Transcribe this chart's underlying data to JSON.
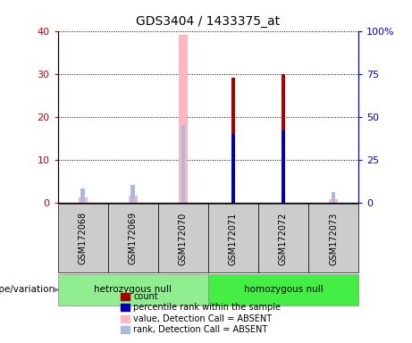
{
  "title": "GDS3404 / 1433375_at",
  "samples": [
    "GSM172068",
    "GSM172069",
    "GSM172070",
    "GSM172071",
    "GSM172072",
    "GSM172073"
  ],
  "groups": [
    {
      "label": "hetrozygous null",
      "color": "#90EE90",
      "samples_range": [
        0,
        2
      ]
    },
    {
      "label": "homozygous null",
      "color": "#44EE44",
      "samples_range": [
        3,
        5
      ]
    }
  ],
  "count_values": [
    0,
    0,
    0,
    29,
    30,
    0
  ],
  "rank_values_pct": [
    0,
    0,
    0,
    40,
    42,
    0
  ],
  "absent_value_left": [
    1.2,
    1.5,
    39,
    0,
    0,
    0.7
  ],
  "absent_rank_pct": [
    8,
    10,
    45,
    0,
    0,
    6
  ],
  "ylim_left": [
    0,
    40
  ],
  "ylim_right": [
    0,
    100
  ],
  "yticks_left": [
    0,
    10,
    20,
    30,
    40
  ],
  "yticks_right": [
    0,
    25,
    50,
    75,
    100
  ],
  "yticklabels_right": [
    "0",
    "25",
    "50",
    "75",
    "100%"
  ],
  "count_color": "#AA0000",
  "rank_color": "#0000BB",
  "absent_value_color": "#FFB6C1",
  "absent_rank_color": "#AABBDD",
  "left_tick_color": "#CC0000",
  "right_tick_color": "#0000CC",
  "genotype_label": "genotype/variation",
  "group_colors": [
    "#90EE90",
    "#44EE44"
  ],
  "legend_items": [
    {
      "label": "count",
      "color": "#AA0000"
    },
    {
      "label": "percentile rank within the sample",
      "color": "#0000BB"
    },
    {
      "label": "value, Detection Call = ABSENT",
      "color": "#FFB6C1"
    },
    {
      "label": "rank, Detection Call = ABSENT",
      "color": "#AABBDD"
    }
  ]
}
